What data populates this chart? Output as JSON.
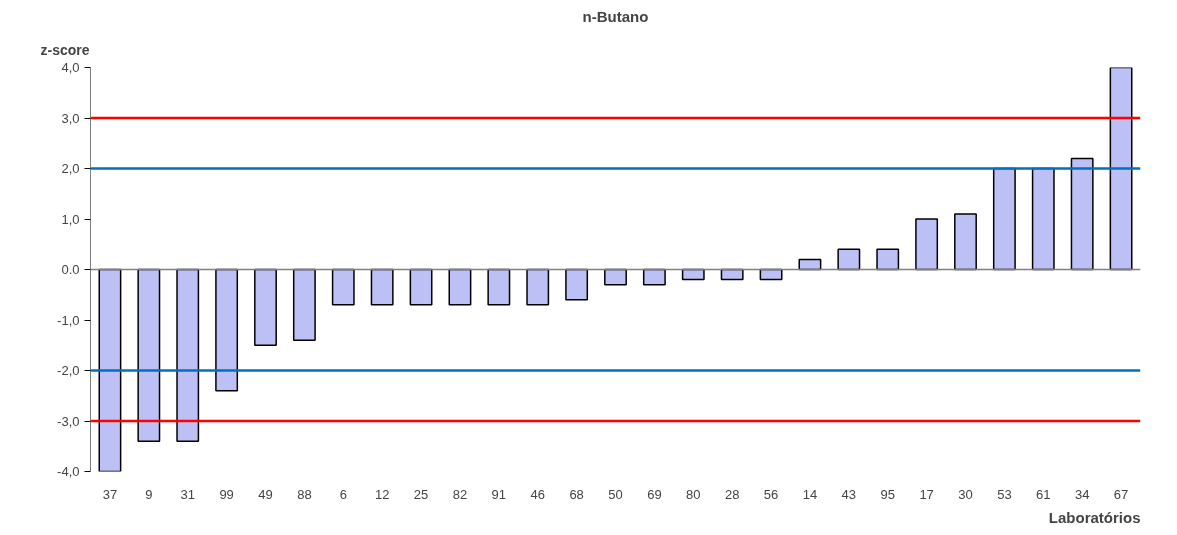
{
  "chart_data": {
    "type": "bar",
    "title": "n-Butano",
    "ylabel": "z-score",
    "xlabel": "Laboratórios",
    "categories": [
      "37",
      "9",
      "31",
      "99",
      "49",
      "88",
      "6",
      "12",
      "25",
      "82",
      "91",
      "46",
      "68",
      "50",
      "69",
      "80",
      "28",
      "56",
      "14",
      "43",
      "95",
      "17",
      "30",
      "53",
      "61",
      "34",
      "67"
    ],
    "values": [
      -4.0,
      -3.4,
      -3.4,
      -2.4,
      -1.5,
      -1.4,
      -0.7,
      -0.7,
      -0.7,
      -0.7,
      -0.7,
      -0.7,
      -0.6,
      -0.3,
      -0.3,
      -0.2,
      -0.2,
      -0.2,
      0.2,
      0.4,
      0.4,
      1.0,
      1.1,
      2.0,
      2.0,
      2.2,
      4.0
    ],
    "color": "#bcc0f4",
    "ylim": [
      -4,
      4
    ],
    "yticks": [
      {
        "value": -4,
        "label": "-4,0"
      },
      {
        "value": -3,
        "label": "-3,0"
      },
      {
        "value": -2,
        "label": "-2,0"
      },
      {
        "value": -1,
        "label": "-1,0"
      },
      {
        "value": 0,
        "label": "0.0"
      },
      {
        "value": 1,
        "label": "1,0"
      },
      {
        "value": 2,
        "label": "2,0"
      },
      {
        "value": 3,
        "label": "3,0"
      },
      {
        "value": 4,
        "label": "4,0"
      }
    ],
    "grid": false,
    "ref_lines": [
      {
        "axis": "y",
        "value": 3,
        "color": "#ff0000"
      },
      {
        "axis": "y",
        "value": 2,
        "color": "#0070c0"
      },
      {
        "axis": "y",
        "value": -2,
        "color": "#0070c0"
      },
      {
        "axis": "y",
        "value": -3,
        "color": "#ff0000"
      }
    ]
  }
}
